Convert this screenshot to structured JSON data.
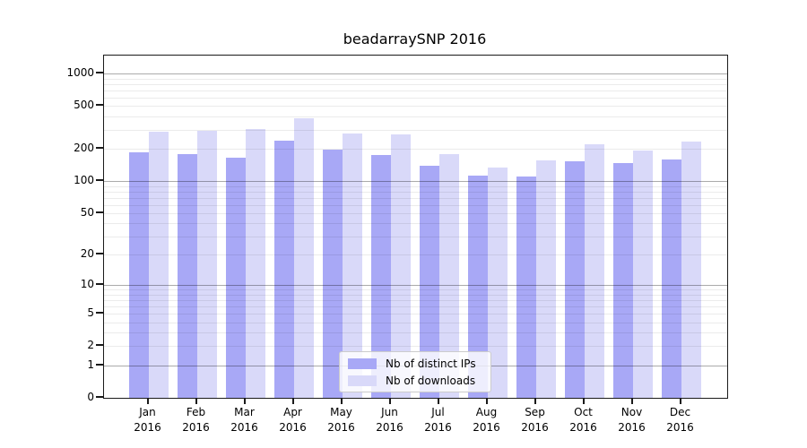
{
  "title": "beadarraySNP 2016",
  "chart_data": {
    "type": "bar",
    "title": "beadarraySNP 2016",
    "categories": [
      "Jan 2016",
      "Feb 2016",
      "Mar 2016",
      "Apr 2016",
      "May 2016",
      "Jun 2016",
      "Jul 2016",
      "Aug 2016",
      "Sep 2016",
      "Oct 2016",
      "Nov 2016",
      "Dec 2016"
    ],
    "series": [
      {
        "name": "Nb of distinct IPs",
        "color": "#a8a8f6",
        "values": [
          185,
          178,
          166,
          240,
          197,
          176,
          140,
          113,
          110,
          154,
          147,
          158
        ]
      },
      {
        "name": "Nb of downloads",
        "color": "#d9d9f9",
        "values": [
          290,
          296,
          308,
          385,
          276,
          272,
          180,
          135,
          157,
          220,
          193,
          232
        ]
      }
    ],
    "xlabel": "",
    "ylabel": "",
    "yscale": "log10(1+v)",
    "yticks": [
      0,
      1,
      2,
      5,
      10,
      20,
      50,
      100,
      200,
      500,
      1000
    ],
    "ylim": [
      0,
      1470
    ],
    "grid": true,
    "grid_decades": [
      1,
      10,
      100,
      1000
    ],
    "legend_position": "inside-bottom-center"
  },
  "colors": {
    "distinct_ips_bar": "#a8a8f6",
    "downloads_bar": "#d9d9f9",
    "decade_gridline": "#aaaaaa",
    "minor_gridline": "#ebebeb",
    "axis": "#1a1a1a",
    "legend_border": "#cccccc",
    "background": "#ffffff"
  }
}
